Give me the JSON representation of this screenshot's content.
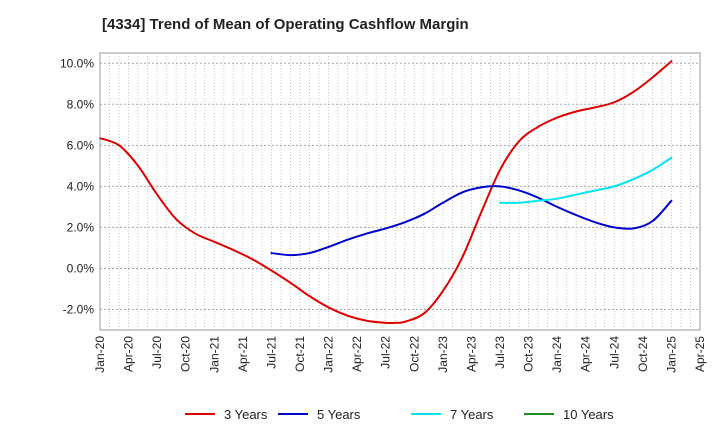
{
  "chart_data": {
    "type": "line",
    "title": "[4334]  Trend of Mean of Operating Cashflow Margin",
    "xlabel": "",
    "ylabel": "",
    "y_unit": "%",
    "ylim": [
      -3.0,
      10.5
    ],
    "yticks": [
      -2.0,
      0.0,
      2.0,
      4.0,
      6.0,
      8.0,
      10.0
    ],
    "ytick_labels": [
      "-2.0%",
      "0.0%",
      "2.0%",
      "4.0%",
      "6.0%",
      "8.0%",
      "10.0%"
    ],
    "xlim": [
      "2020-01",
      "2025-04"
    ],
    "xticks": [
      "Jan-20",
      "Apr-20",
      "Jul-20",
      "Oct-20",
      "Jan-21",
      "Apr-21",
      "Jul-21",
      "Oct-21",
      "Jan-22",
      "Apr-22",
      "Jul-22",
      "Oct-22",
      "Jan-23",
      "Apr-23",
      "Jul-23",
      "Oct-23",
      "Jan-24",
      "Apr-24",
      "Jul-24",
      "Oct-24",
      "Jan-25",
      "Apr-25"
    ],
    "grid": true,
    "legend_position": "bottom",
    "series": [
      {
        "name": "3 Years",
        "color": "#dd0000",
        "x": [
          "2020-01",
          "2020-03",
          "2020-05",
          "2020-07",
          "2020-09",
          "2020-11",
          "2021-01",
          "2021-03",
          "2021-05",
          "2021-07",
          "2021-09",
          "2021-11",
          "2022-01",
          "2022-03",
          "2022-05",
          "2022-07",
          "2022-08",
          "2022-09",
          "2022-11",
          "2023-01",
          "2023-03",
          "2023-05",
          "2023-07",
          "2023-09",
          "2023-11",
          "2024-01",
          "2024-03",
          "2024-05",
          "2024-07",
          "2024-09",
          "2024-11",
          "2025-01"
        ],
        "values": [
          6.35,
          6.0,
          5.0,
          3.6,
          2.4,
          1.7,
          1.3,
          0.9,
          0.45,
          -0.1,
          -0.7,
          -1.35,
          -1.9,
          -2.3,
          -2.55,
          -2.65,
          -2.65,
          -2.6,
          -2.2,
          -1.1,
          0.5,
          2.7,
          4.8,
          6.2,
          6.9,
          7.35,
          7.65,
          7.85,
          8.1,
          8.6,
          9.3,
          10.1
        ]
      },
      {
        "name": "5 Years",
        "color": "#0000cc",
        "x": [
          "2021-07",
          "2021-09",
          "2021-11",
          "2022-01",
          "2022-03",
          "2022-05",
          "2022-07",
          "2022-09",
          "2022-11",
          "2023-01",
          "2023-03",
          "2023-05",
          "2023-07",
          "2023-09",
          "2023-11",
          "2024-01",
          "2024-03",
          "2024-05",
          "2024-07",
          "2024-09",
          "2024-11",
          "2025-01"
        ],
        "values": [
          0.75,
          0.65,
          0.75,
          1.05,
          1.4,
          1.7,
          1.95,
          2.25,
          2.65,
          3.2,
          3.7,
          3.95,
          4.0,
          3.8,
          3.45,
          3.0,
          2.6,
          2.25,
          2.0,
          1.95,
          2.3,
          3.3
        ]
      },
      {
        "name": "7 Years",
        "color": "#00e5ee",
        "x": [
          "2023-07",
          "2023-09",
          "2023-11",
          "2024-01",
          "2024-03",
          "2024-05",
          "2024-07",
          "2024-09",
          "2024-11",
          "2025-01"
        ],
        "values": [
          3.2,
          3.2,
          3.3,
          3.4,
          3.6,
          3.8,
          4.0,
          4.35,
          4.8,
          5.4
        ]
      },
      {
        "name": "10 Years",
        "color": "#228b22",
        "x": [],
        "values": []
      }
    ]
  }
}
